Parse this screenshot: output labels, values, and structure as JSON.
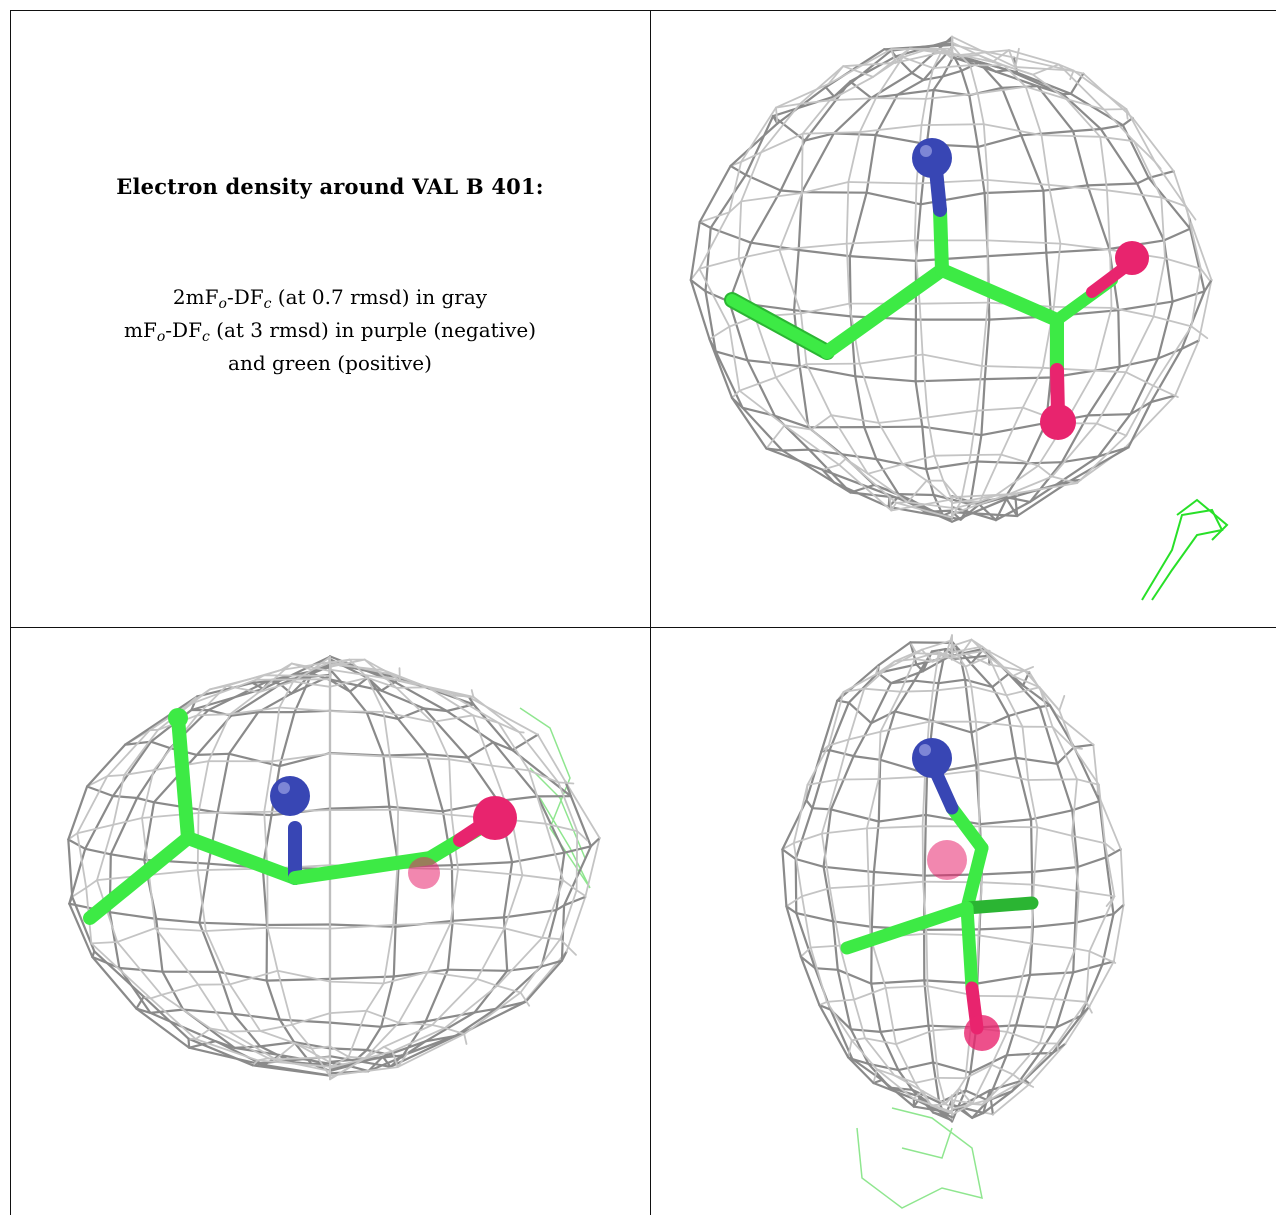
{
  "caption": {
    "title": "Electron density around VAL B 401:",
    "line1": {
      "a": "2mF",
      "a_sub": "o",
      "b": "-DF",
      "b_sub": "c",
      "rest": " (at 0.7 rmsd) in gray"
    },
    "line2": {
      "a": "mF",
      "a_sub": "o",
      "b": "-DF",
      "b_sub": "c",
      "rest": " (at 3 rmsd) in purple (negative)"
    },
    "line3": "and green (positive)"
  },
  "colors": {
    "mesh_gray": "#8a8a8a",
    "mesh_light": "#c4c4c4",
    "stick_green": "#3dea45",
    "nitrogen_blue": "#3846b4",
    "oxygen_red": "#e8246e",
    "positive_green": "#28e028"
  },
  "views": [
    {
      "name": "view-1",
      "icon": "density-view-1"
    },
    {
      "name": "view-2",
      "icon": "density-view-2"
    },
    {
      "name": "view-3",
      "icon": "density-view-3"
    }
  ]
}
